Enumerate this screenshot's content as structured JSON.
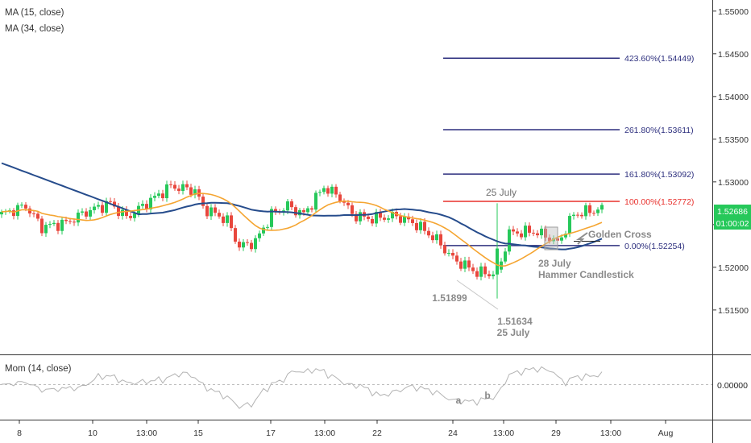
{
  "legend": {
    "ma_fast": "MA (15, close)",
    "ma_slow": "MA (34, close)",
    "mom": "Mom (14, close)"
  },
  "colors": {
    "bull": "#26c85a",
    "bear": "#e8473d",
    "ma_fast": "#f5a531",
    "ma_slow": "#264c8c",
    "fib": "#2d2f7e",
    "fib_100": "#e8302c",
    "mom": "#b3b3b3",
    "price_tag": "#26c85a"
  },
  "chart_data": {
    "type": "candlestick",
    "y_axis": {
      "range": [
        1.5098,
        1.5513
      ],
      "ticks": [
        "1.55000",
        "1.54500",
        "1.54000",
        "1.53500",
        "1.53000",
        "1.52500",
        "1.52000",
        "1.51500"
      ]
    },
    "x_axis": {
      "ticks": [
        "8",
        "10",
        "13:00",
        "15",
        "17",
        "13:00",
        "22",
        "24",
        "13:00",
        "29",
        "13:00",
        "Aug"
      ]
    },
    "last_price": "1.52686",
    "countdown": "01:00:02",
    "fib_levels": [
      {
        "label": "423.60%(1.54449)",
        "price": 1.54449
      },
      {
        "label": "261.80%(1.53611)",
        "price": 1.53611
      },
      {
        "label": "161.80%(1.53092)",
        "price": 1.53092
      },
      {
        "label": "100.00%(1.52772)",
        "price": 1.52772
      },
      {
        "label": "0.00%(1.52254)",
        "price": 1.52254
      }
    ],
    "annotations": {
      "date_top": "25 July",
      "low_1": "1.51899",
      "low_2": "1.51634",
      "low_2_date": "25 July",
      "hammer_date": "28 July",
      "hammer_name": "Hammer Candlestick",
      "golden_cross": "Golden Cross"
    },
    "momentum": {
      "level_label": "0.00000",
      "labels": [
        "a",
        "b"
      ]
    }
  }
}
